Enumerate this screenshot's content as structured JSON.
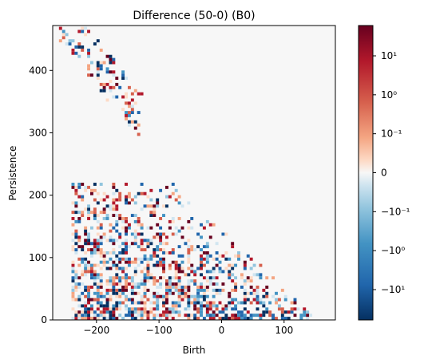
{
  "chart_data": {
    "type": "heatmap",
    "title": "Difference (50-0) (B0)",
    "xlabel": "Birth",
    "ylabel": "Persistence",
    "xlim": [
      -270,
      182
    ],
    "ylim": [
      0,
      472
    ],
    "bin_width": 5,
    "x_ticks": [
      {
        "value": -200,
        "label": "−200"
      },
      {
        "value": -100,
        "label": "−100"
      },
      {
        "value": 0,
        "label": "0"
      },
      {
        "value": 100,
        "label": "100"
      }
    ],
    "y_ticks": [
      {
        "value": 0,
        "label": "0"
      },
      {
        "value": 100,
        "label": "100"
      },
      {
        "value": 200,
        "label": "200"
      },
      {
        "value": 300,
        "label": "300"
      },
      {
        "value": 400,
        "label": "400"
      }
    ],
    "colorbar": {
      "scale": "symlog",
      "colormap": "RdBu_r",
      "range": [
        -60,
        60
      ],
      "ticks": [
        {
          "value": 10,
          "label": "10¹"
        },
        {
          "value": 1,
          "label": "10⁰"
        },
        {
          "value": 0.1,
          "label": "10⁻¹"
        },
        {
          "value": 0,
          "label": "0"
        },
        {
          "value": -0.1,
          "label": "−10⁻¹"
        },
        {
          "value": -1,
          "label": "−10⁰"
        },
        {
          "value": -10,
          "label": "−10¹"
        }
      ]
    },
    "background_color": "#f7f7f7",
    "grid": false,
    "regions": [
      {
        "name": "upper band",
        "birth_range": [
          -260,
          -125
        ],
        "persistence_range": [
          270,
          470
        ]
      },
      {
        "name": "lower wedge",
        "birth_range": [
          -240,
          160
        ],
        "persistence_range": [
          0,
          225
        ]
      }
    ]
  }
}
